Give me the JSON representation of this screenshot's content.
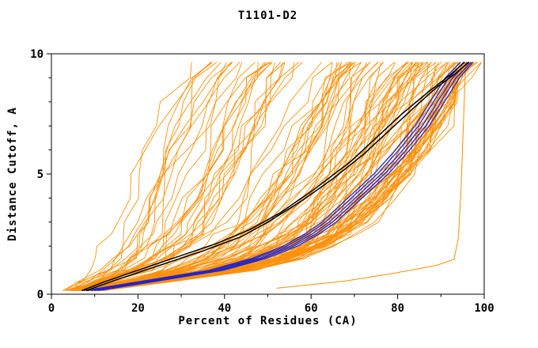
{
  "chart_data": {
    "type": "line",
    "title": "T1101-D2",
    "xlabel": "Percent of Residues (CA)",
    "ylabel": "Distance Cutoff, A",
    "xlim": [
      0,
      100
    ],
    "ylim": [
      0,
      10
    ],
    "x_ticks": [
      0,
      20,
      40,
      60,
      80,
      100
    ],
    "y_ticks": [
      0,
      5,
      10
    ],
    "x_minor_step": 10,
    "y_minor_step": 1,
    "grid": false,
    "legend": "none",
    "colors": {
      "models": "#ff8c00",
      "cluster": "#2424c8",
      "reference": "#000000",
      "axis": "#000000",
      "background": "#ffffff"
    },
    "model_fan": {
      "description": "predicted model GDT curves",
      "count": 120,
      "seed": 1101,
      "y_breakpoints": [
        0.15,
        0.5,
        1,
        1.5,
        2,
        2.5,
        3,
        4,
        5,
        6,
        7,
        8,
        9,
        9.65
      ],
      "x_envelope_poor": [
        3,
        4,
        5.5,
        6.5,
        7.5,
        8.5,
        9.5,
        11,
        12.5,
        14,
        16,
        18.5,
        21.5,
        25
      ],
      "x_envelope_good": [
        10,
        24,
        44,
        55,
        62,
        67,
        71,
        77,
        82,
        86,
        89,
        92,
        94.5,
        97.5
      ]
    },
    "highlight_series": [
      {
        "name": "outlier-model",
        "color_key": "models",
        "width": 1,
        "points": [
          [
            52,
            0.25
          ],
          [
            68,
            0.55
          ],
          [
            80,
            0.9
          ],
          [
            89,
            1.2
          ],
          [
            93,
            1.45
          ],
          [
            94,
            2.3
          ],
          [
            94.6,
            4.2
          ],
          [
            95.1,
            6.6
          ],
          [
            95.7,
            9.6
          ]
        ]
      },
      {
        "name": "cluster-blue-1",
        "color_key": "cluster",
        "width": 1.3,
        "points": [
          [
            7.5,
            0.15
          ],
          [
            19.5,
            0.5
          ],
          [
            36.5,
            1
          ],
          [
            46.5,
            1.5
          ],
          [
            53.5,
            2
          ],
          [
            58.5,
            2.5
          ],
          [
            62.5,
            3
          ],
          [
            68.5,
            4
          ],
          [
            74.5,
            5
          ],
          [
            79.5,
            6
          ],
          [
            84,
            7
          ],
          [
            87.5,
            8
          ],
          [
            91,
            9
          ],
          [
            94.5,
            9.65
          ]
        ]
      },
      {
        "name": "cluster-blue-2",
        "color_key": "cluster",
        "width": 1.3,
        "points": [
          [
            8.3,
            0.15
          ],
          [
            20.3,
            0.5
          ],
          [
            37.3,
            1
          ],
          [
            47.3,
            1.5
          ],
          [
            54.3,
            2
          ],
          [
            59.3,
            2.5
          ],
          [
            63.3,
            3
          ],
          [
            69.3,
            4
          ],
          [
            75.3,
            5
          ],
          [
            80.3,
            6
          ],
          [
            84.8,
            7
          ],
          [
            88.3,
            8
          ],
          [
            91.8,
            9
          ],
          [
            95.3,
            9.65
          ]
        ]
      },
      {
        "name": "cluster-blue-3",
        "color_key": "cluster",
        "width": 1.3,
        "points": [
          [
            9.2,
            0.15
          ],
          [
            21.2,
            0.5
          ],
          [
            38.2,
            1
          ],
          [
            48.2,
            1.5
          ],
          [
            55.2,
            2
          ],
          [
            60.2,
            2.5
          ],
          [
            64.2,
            3
          ],
          [
            70.2,
            4
          ],
          [
            76.2,
            5
          ],
          [
            81.2,
            6
          ],
          [
            85.7,
            7
          ],
          [
            89.2,
            8
          ],
          [
            92.7,
            9
          ],
          [
            96.2,
            9.65
          ]
        ]
      },
      {
        "name": "cluster-blue-4",
        "color_key": "cluster",
        "width": 1.3,
        "points": [
          [
            10,
            0.15
          ],
          [
            22,
            0.5
          ],
          [
            39,
            1
          ],
          [
            49,
            1.5
          ],
          [
            56,
            2
          ],
          [
            61,
            2.5
          ],
          [
            65,
            3
          ],
          [
            71,
            4
          ],
          [
            77,
            5
          ],
          [
            82,
            6
          ],
          [
            86.5,
            7
          ],
          [
            90,
            8
          ],
          [
            93.5,
            9
          ],
          [
            97,
            9.65
          ]
        ]
      },
      {
        "name": "cluster-blue-5",
        "color_key": "cluster",
        "width": 1.3,
        "points": [
          [
            10.8,
            0.15
          ],
          [
            22.8,
            0.5
          ],
          [
            39.8,
            1
          ],
          [
            49.8,
            1.5
          ],
          [
            56.8,
            2
          ],
          [
            61.8,
            2.5
          ],
          [
            65.8,
            3
          ],
          [
            71.8,
            4
          ],
          [
            77.8,
            5
          ],
          [
            82.8,
            6
          ],
          [
            87.3,
            7
          ],
          [
            90.8,
            8
          ],
          [
            94.3,
            9
          ],
          [
            97.4,
            9.65
          ]
        ]
      },
      {
        "name": "reference-black-1",
        "color_key": "reference",
        "width": 1.5,
        "points": [
          [
            8,
            0.15
          ],
          [
            15,
            0.6
          ],
          [
            25,
            1.2
          ],
          [
            35,
            1.8
          ],
          [
            44,
            2.4
          ],
          [
            50,
            3
          ],
          [
            58,
            3.9
          ],
          [
            65,
            4.8
          ],
          [
            72,
            5.8
          ],
          [
            78,
            6.8
          ],
          [
            84,
            7.8
          ],
          [
            89,
            8.6
          ],
          [
            93.5,
            9.2
          ],
          [
            96.5,
            9.65
          ]
        ]
      },
      {
        "name": "reference-black-2",
        "color_key": "reference",
        "width": 1.5,
        "points": [
          [
            7,
            0.15
          ],
          [
            12,
            0.5
          ],
          [
            20,
            1.0
          ],
          [
            29,
            1.55
          ],
          [
            38,
            2.1
          ],
          [
            46,
            2.7
          ],
          [
            53,
            3.4
          ],
          [
            61,
            4.4
          ],
          [
            69,
            5.5
          ],
          [
            75,
            6.5
          ],
          [
            81,
            7.5
          ],
          [
            87,
            8.4
          ],
          [
            92,
            9.1
          ],
          [
            95.5,
            9.65
          ]
        ]
      }
    ]
  }
}
